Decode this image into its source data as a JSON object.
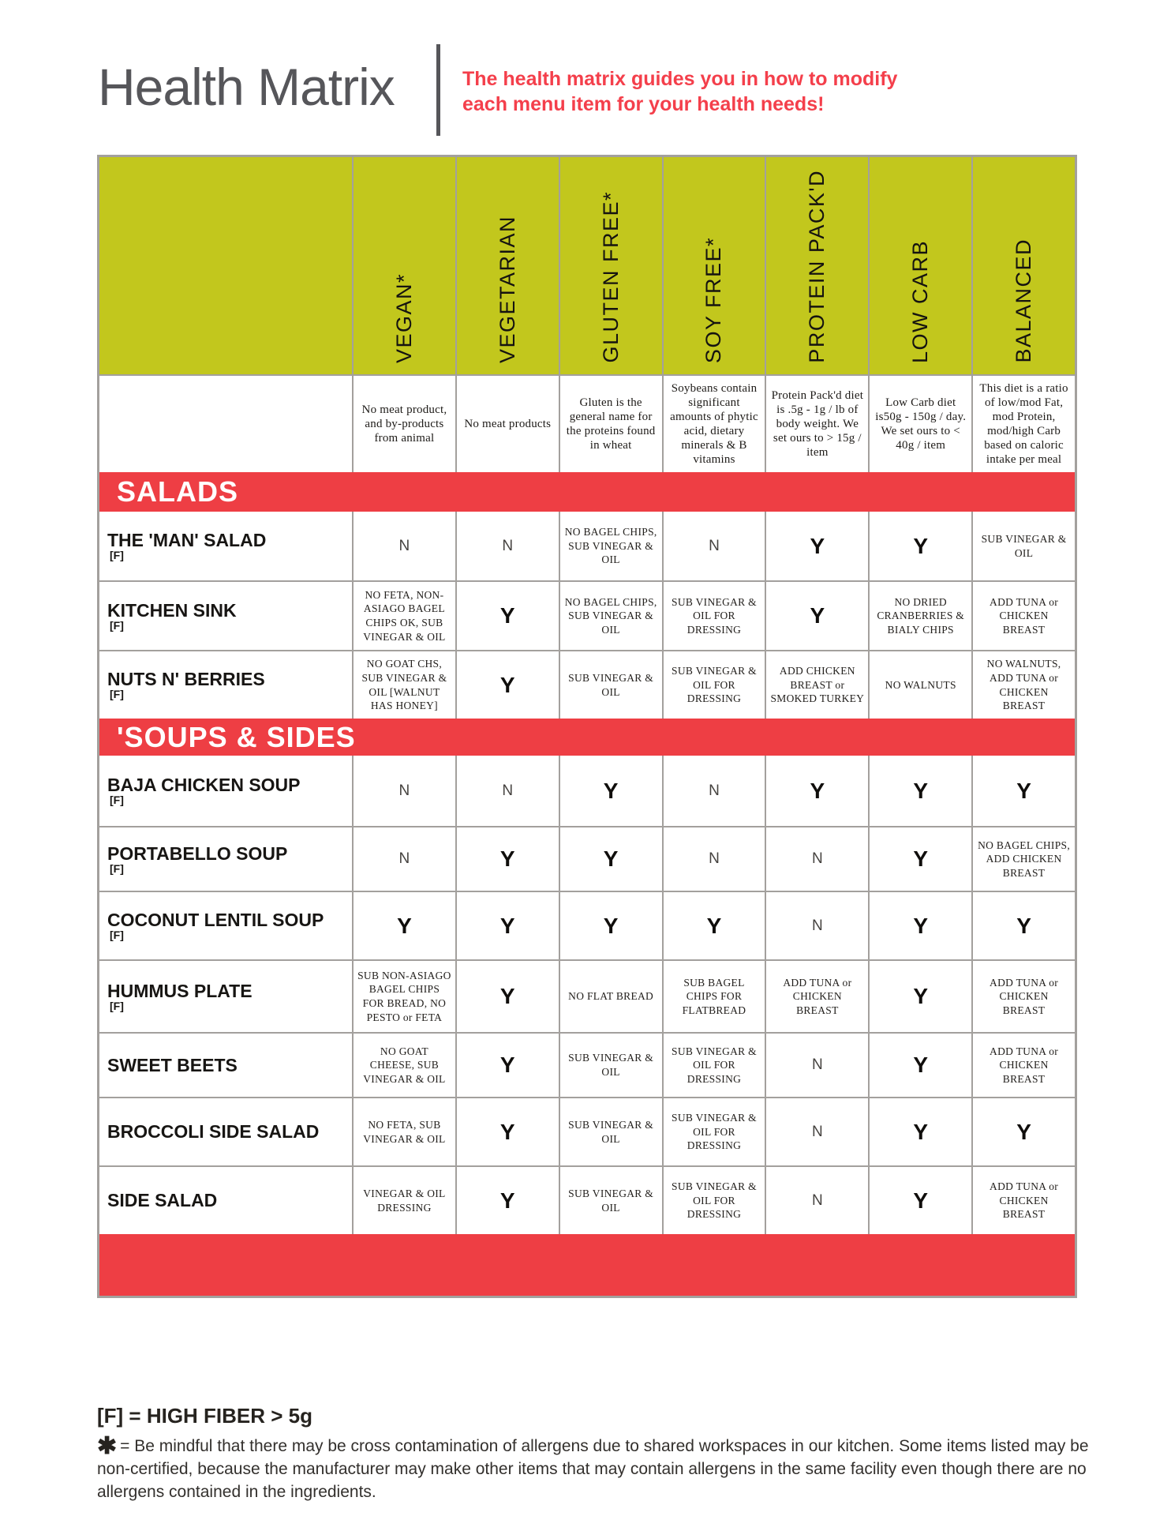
{
  "header": {
    "title": "Health Matrix",
    "tagline_line1": "The health matrix guides you in how to modify",
    "tagline_line2": "each menu item for your health needs!"
  },
  "colors": {
    "accent_red": "#ee3e44",
    "tagline_red": "#f43f4b",
    "olive_header": "#c2c71d",
    "border_gray": "#a3a09d",
    "title_gray": "#56565a"
  },
  "table": {
    "fiber_mark": "[F]",
    "columns": [
      {
        "label": "VEGAN*",
        "description": "No meat product, and by-products from animal"
      },
      {
        "label": "VEGETARIAN",
        "description": "No meat products"
      },
      {
        "label": "GLUTEN FREE*",
        "description": "Gluten is the general name for the proteins found in wheat"
      },
      {
        "label": "SOY FREE*",
        "description": "Soybeans contain significant amounts of phytic acid, dietary minerals & B vitamins"
      },
      {
        "label": "PROTEIN PACK'D",
        "description": "Protein Pack'd diet is .5g - 1g / lb of body weight. We set ours to > 15g / item"
      },
      {
        "label": "LOW CARB",
        "description": "Low Carb diet is50g - 150g / day. We set ours to < 40g / item"
      },
      {
        "label": "BALANCED",
        "description": "This diet is a ratio of low/mod Fat, mod Protein, mod/high Carb based on caloric intake per meal"
      }
    ],
    "sections": [
      {
        "title": "SALADS",
        "rows": [
          {
            "name": "THE 'MAN' SALAD",
            "fiber": true,
            "cells": [
              "N",
              "N",
              "NO BAGEL CHIPS, SUB VINEGAR & OIL",
              "N",
              "Y",
              "Y",
              "SUB VINEGAR & OIL"
            ]
          },
          {
            "name": "KITCHEN SINK",
            "fiber": true,
            "cells": [
              "NO FETA, NON-ASIAGO BAGEL CHIPS OK, SUB VINEGAR & OIL",
              "Y",
              "NO BAGEL CHIPS, SUB VINEGAR & OIL",
              "SUB VINEGAR & OIL FOR DRESSING",
              "Y",
              "NO DRIED CRANBERRIES & BIALY CHIPS",
              "ADD TUNA or CHICKEN BREAST"
            ]
          },
          {
            "name": "NUTS N' BERRIES",
            "fiber": true,
            "cells": [
              "NO GOAT CHS, SUB VINEGAR & OIL [WALNUT HAS HONEY]",
              "Y",
              "SUB VINEGAR & OIL",
              "SUB VINEGAR & OIL FOR DRESSING",
              "ADD CHICKEN BREAST or SMOKED TURKEY",
              "NO WALNUTS",
              "NO WALNUTS, ADD TUNA or CHICKEN BREAST"
            ]
          }
        ]
      },
      {
        "title": "'SOUPS & SIDES",
        "rows": [
          {
            "name": "BAJA CHICKEN SOUP",
            "fiber": true,
            "cells": [
              "N",
              "N",
              "Y",
              "N",
              "Y",
              "Y",
              "Y"
            ]
          },
          {
            "name": "PORTABELLO SOUP",
            "fiber": true,
            "cells": [
              "N",
              "Y",
              "Y",
              "N",
              "N",
              "Y",
              "NO BAGEL CHIPS, ADD CHICKEN BREAST"
            ]
          },
          {
            "name": "COCONUT LENTIL SOUP",
            "fiber": true,
            "cells": [
              "Y",
              "Y",
              "Y",
              "Y",
              "N",
              "Y",
              "Y"
            ]
          },
          {
            "name": "HUMMUS PLATE",
            "fiber": true,
            "cells": [
              "SUB NON-ASIAGO BAGEL CHIPS FOR BREAD, NO PESTO or FETA",
              "Y",
              "NO FLAT BREAD",
              "SUB BAGEL CHIPS FOR FLATBREAD",
              "ADD TUNA or CHICKEN BREAST",
              "Y",
              "ADD TUNA or CHICKEN BREAST"
            ]
          },
          {
            "name": "SWEET BEETS",
            "fiber": false,
            "cells": [
              "NO GOAT CHEESE, SUB VINEGAR & OIL",
              "Y",
              "SUB VINEGAR & OIL",
              "SUB VINEGAR & OIL FOR DRESSING",
              "N",
              "Y",
              "ADD TUNA or CHICKEN BREAST"
            ]
          },
          {
            "name": "BROCCOLI SIDE SALAD",
            "fiber": false,
            "cells": [
              "NO FETA, SUB VINEGAR & OIL",
              "Y",
              "SUB VINEGAR & OIL",
              "SUB VINEGAR & OIL FOR DRESSING",
              "N",
              "Y",
              "Y"
            ]
          },
          {
            "name": "SIDE SALAD",
            "fiber": false,
            "cells": [
              "VINEGAR & OIL DRESSING",
              "Y",
              "SUB VINEGAR & OIL",
              "SUB VINEGAR & OIL FOR DRESSING",
              "N",
              "Y",
              "ADD TUNA or CHICKEN BREAST"
            ]
          }
        ]
      }
    ]
  },
  "footer": {
    "fiber_line": "[F] = HIGH FIBER > 5g",
    "star_mark": "✱",
    "note_text": "= Be mindful that there may be cross contamination of allergens due to shared workspaces in our kitchen. Some items listed may be non-certified, because the manufacturer may make other items that may contain allergens in the same facility even though there are no allergens contained in the ingredients."
  }
}
